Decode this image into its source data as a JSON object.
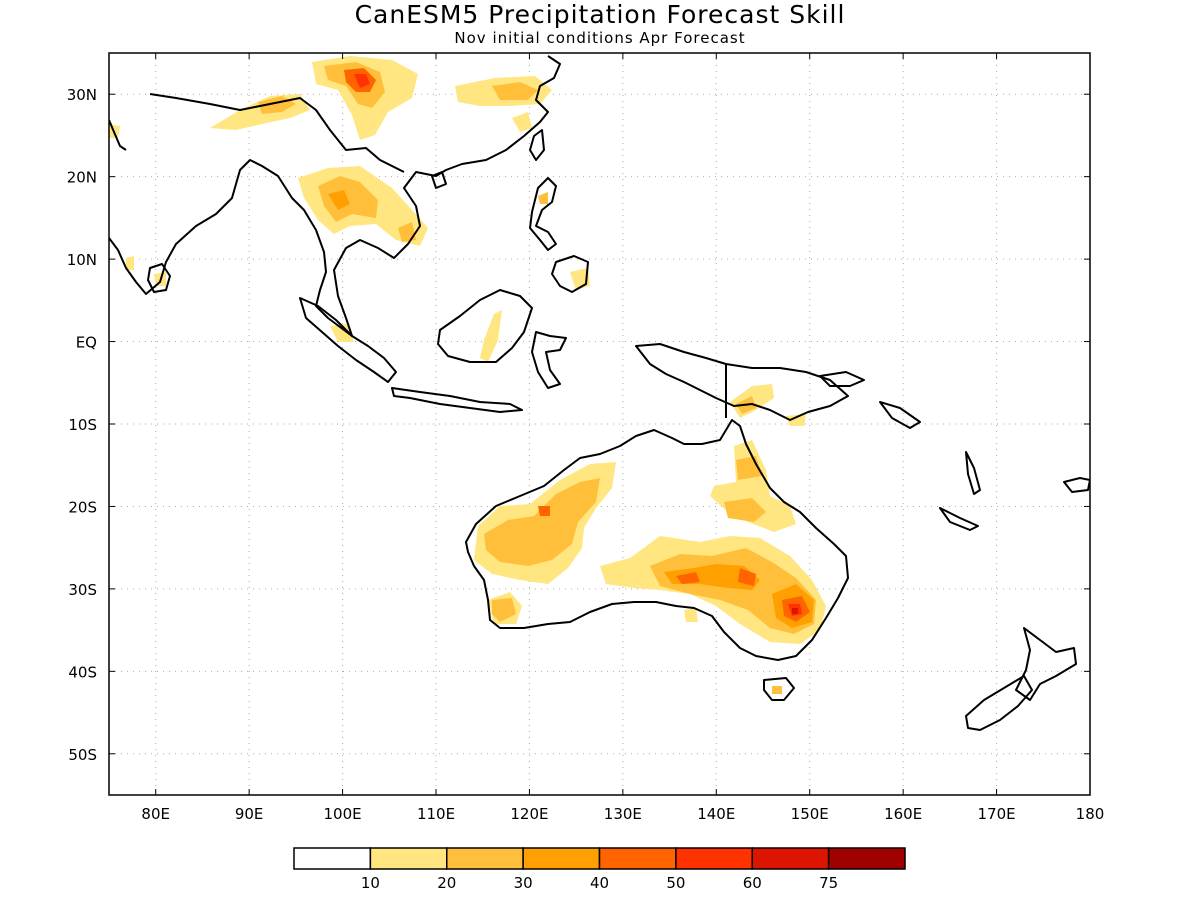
{
  "title": "CanESM5 Precipitation Forecast Skill",
  "subtitle": "Nov initial conditions  Apr Forecast",
  "map": {
    "lon_range": [
      75,
      180
    ],
    "lat_range": [
      -55,
      35
    ],
    "lon_ticks": [
      {
        "value": 80,
        "label": "80E"
      },
      {
        "value": 90,
        "label": "90E"
      },
      {
        "value": 100,
        "label": "100E"
      },
      {
        "value": 110,
        "label": "110E"
      },
      {
        "value": 120,
        "label": "120E"
      },
      {
        "value": 130,
        "label": "130E"
      },
      {
        "value": 140,
        "label": "140E"
      },
      {
        "value": 150,
        "label": "150E"
      },
      {
        "value": 160,
        "label": "160E"
      },
      {
        "value": 170,
        "label": "170E"
      },
      {
        "value": 180,
        "label": "180"
      }
    ],
    "lat_ticks": [
      {
        "value": 30,
        "label": "30N"
      },
      {
        "value": 20,
        "label": "20N"
      },
      {
        "value": 10,
        "label": "10N"
      },
      {
        "value": 0,
        "label": "EQ"
      },
      {
        "value": -10,
        "label": "10S"
      },
      {
        "value": -20,
        "label": "20S"
      },
      {
        "value": -30,
        "label": "30S"
      },
      {
        "value": -40,
        "label": "40S"
      },
      {
        "value": -50,
        "label": "50S"
      }
    ],
    "grid": "dotted"
  },
  "colorbar": {
    "colors": [
      "#ffffff",
      "#ffe680",
      "#ffbf3a",
      "#ffa000",
      "#ff6400",
      "#ff3200",
      "#dc1400",
      "#a00000"
    ],
    "labels": [
      "10",
      "20",
      "30",
      "40",
      "50",
      "60",
      "75"
    ]
  }
}
